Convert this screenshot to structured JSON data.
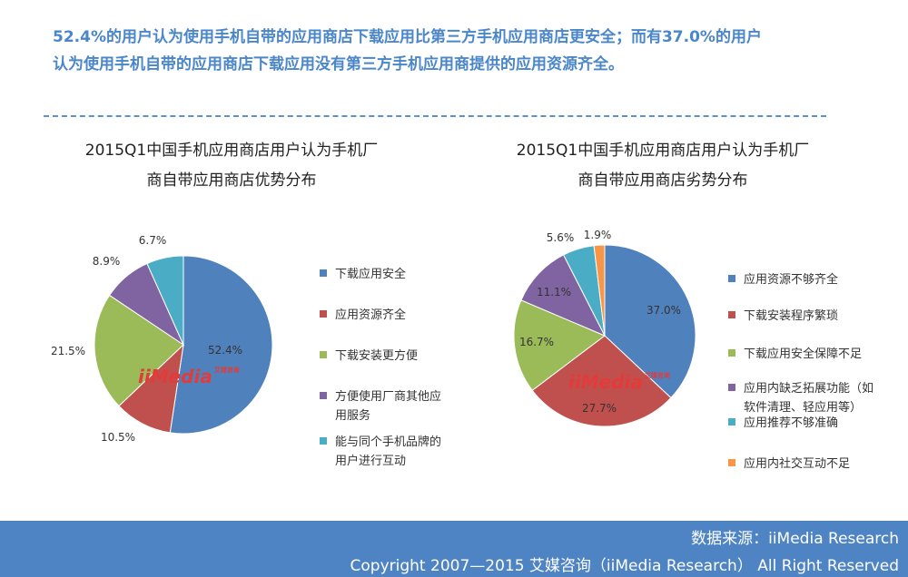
{
  "headline": {
    "line1": "52.4%的用户认为使用手机自带的应用商店下载应用比第三方手机应用商店更安全；而有37.0%的用户",
    "line2": "认为使用手机自带的应用商店下载应用没有第三方手机应用商提供的应用资源齐全。"
  },
  "watermark": {
    "brand": "iiMedia",
    "cn": "艾媒咨询"
  },
  "chart_data": [
    {
      "type": "pie",
      "title_line1": "2015Q1中国手机应用商店用户认为手机厂",
      "title_line2": "商自带应用商店优势分布",
      "slices": [
        {
          "name": "下载应用安全",
          "value": 52.4,
          "label": "52.4%",
          "color": "#4f81bd"
        },
        {
          "name": "应用资源齐全",
          "value": 10.5,
          "label": "10.5%",
          "color": "#c0504d"
        },
        {
          "name": "下载安装更方便",
          "value": 21.5,
          "label": "21.5%",
          "color": "#9bbb59"
        },
        {
          "name": "方便使用厂商其他应用服务",
          "value": 8.9,
          "label": "8.9%",
          "color": "#8064a2"
        },
        {
          "name": "能与同个手机品牌的用户进行互动",
          "value": 6.7,
          "label": "6.7%",
          "color": "#4bacc6"
        }
      ],
      "legend": [
        {
          "lines": [
            "下载应用安全"
          ],
          "color": "#4f81bd"
        },
        {
          "lines": [
            "应用资源齐全"
          ],
          "color": "#c0504d"
        },
        {
          "lines": [
            "下载安装更方便"
          ],
          "color": "#9bbb59"
        },
        {
          "lines": [
            "方便使用厂商其他应",
            "用服务"
          ],
          "color": "#8064a2"
        },
        {
          "lines": [
            "能与同个手机品牌的",
            "用户进行互动"
          ],
          "color": "#4bacc6"
        }
      ],
      "legend_position": "right"
    },
    {
      "type": "pie",
      "title_line1": "2015Q1中国手机应用商店用户认为手机厂",
      "title_line2": "商自带应用商店劣势分布",
      "slices": [
        {
          "name": "应用资源不够齐全",
          "value": 37.0,
          "label": "37.0%",
          "color": "#4f81bd"
        },
        {
          "name": "下载安装程序繁琐",
          "value": 27.7,
          "label": "27.7%",
          "color": "#c0504d"
        },
        {
          "name": "下载应用安全保障不足",
          "value": 16.7,
          "label": "16.7%",
          "color": "#9bbb59"
        },
        {
          "name": "应用内缺乏拓展功能（如软件清理、轻应用等）",
          "value": 11.1,
          "label": "11.1%",
          "color": "#8064a2"
        },
        {
          "name": "应用推荐不够准确",
          "value": 5.6,
          "label": "5.6%",
          "color": "#4bacc6"
        },
        {
          "name": "应用内社交互动不足",
          "value": 1.9,
          "label": "1.9%",
          "color": "#f79646"
        }
      ],
      "legend": [
        {
          "lines": [
            "应用资源不够齐全"
          ],
          "color": "#4f81bd"
        },
        {
          "lines": [
            "下载安装程序繁琐"
          ],
          "color": "#c0504d"
        },
        {
          "lines": [
            "下载应用安全保障不足"
          ],
          "color": "#9bbb59"
        },
        {
          "lines": [
            "应用内缺乏拓展功能（如",
            "软件清理、轻应用等）"
          ],
          "color": "#8064a2"
        },
        {
          "lines": [
            "应用推荐不够准确"
          ],
          "color": "#4bacc6"
        },
        {
          "lines": [
            "应用内社交互动不足"
          ],
          "color": "#f79646"
        }
      ],
      "legend_position": "right"
    }
  ],
  "footer": {
    "source": "数据来源：iiMedia Research",
    "copyright": "Copyright 2007—2015 艾媒咨询（iiMedia Research） All Right Reserved"
  }
}
